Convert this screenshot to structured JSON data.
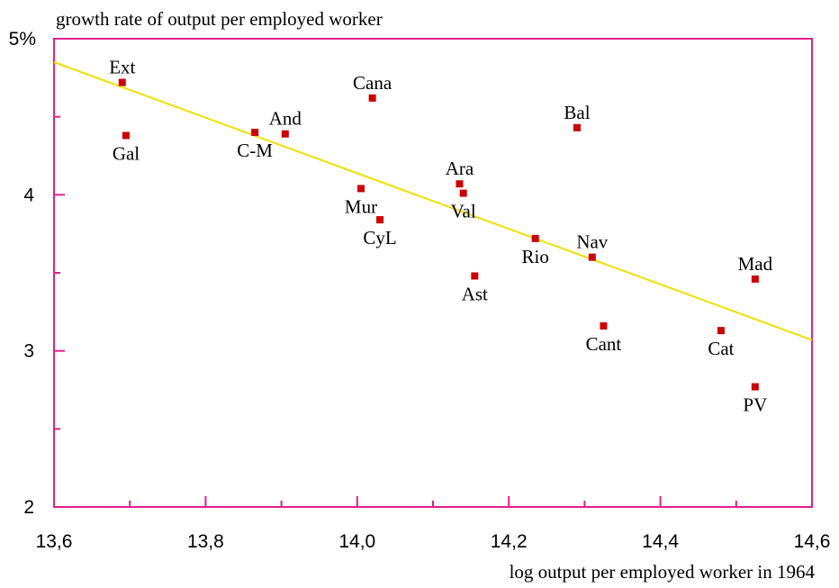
{
  "chart_data": {
    "type": "scatter",
    "title": "",
    "ylabel": "growth rate of output per employed worker",
    "xlabel": "log output per employed worker in 1964",
    "xlim": [
      13.6,
      14.6
    ],
    "ylim": [
      2,
      5
    ],
    "x_ticks": [
      {
        "value": 13.6,
        "label": "13,6"
      },
      {
        "value": 13.8,
        "label": "13,8"
      },
      {
        "value": 14.0,
        "label": "14,0"
      },
      {
        "value": 14.2,
        "label": "14,2"
      },
      {
        "value": 14.4,
        "label": "14,4"
      },
      {
        "value": 14.6,
        "label": "14,6"
      }
    ],
    "y_ticks": [
      {
        "value": 2,
        "label": "2"
      },
      {
        "value": 3,
        "label": "3"
      },
      {
        "value": 4,
        "label": "4"
      },
      {
        "value": 5,
        "label": "5%"
      }
    ],
    "grid": false,
    "colors": {
      "frame": "#e0208c",
      "points": "#cc0000",
      "trendline": "#f0e000"
    },
    "points": [
      {
        "label": "Ext",
        "x": 13.69,
        "y": 4.72,
        "label_pos": "above"
      },
      {
        "label": "Gal",
        "x": 13.695,
        "y": 4.38,
        "label_pos": "below"
      },
      {
        "label": "C-M",
        "x": 13.865,
        "y": 4.4,
        "label_pos": "below"
      },
      {
        "label": "And",
        "x": 13.905,
        "y": 4.39,
        "label_pos": "above"
      },
      {
        "label": "Cana",
        "x": 14.02,
        "y": 4.62,
        "label_pos": "above"
      },
      {
        "label": "Mur",
        "x": 14.005,
        "y": 4.04,
        "label_pos": "below"
      },
      {
        "label": "CyL",
        "x": 14.03,
        "y": 3.84,
        "label_pos": "below"
      },
      {
        "label": "Ara",
        "x": 14.135,
        "y": 4.07,
        "label_pos": "above"
      },
      {
        "label": "Val",
        "x": 14.14,
        "y": 4.01,
        "label_pos": "below"
      },
      {
        "label": "Ast",
        "x": 14.155,
        "y": 3.48,
        "label_pos": "below"
      },
      {
        "label": "Rio",
        "x": 14.235,
        "y": 3.72,
        "label_pos": "below"
      },
      {
        "label": "Bal",
        "x": 14.29,
        "y": 4.43,
        "label_pos": "above"
      },
      {
        "label": "Nav",
        "x": 14.31,
        "y": 3.6,
        "label_pos": "above"
      },
      {
        "label": "Cant",
        "x": 14.325,
        "y": 3.16,
        "label_pos": "below"
      },
      {
        "label": "Cat",
        "x": 14.48,
        "y": 3.13,
        "label_pos": "below"
      },
      {
        "label": "Mad",
        "x": 14.525,
        "y": 3.46,
        "label_pos": "above"
      },
      {
        "label": "PV",
        "x": 14.525,
        "y": 2.77,
        "label_pos": "below"
      }
    ],
    "trendline": {
      "x": [
        13.6,
        14.6
      ],
      "y": [
        4.85,
        3.07
      ]
    }
  }
}
